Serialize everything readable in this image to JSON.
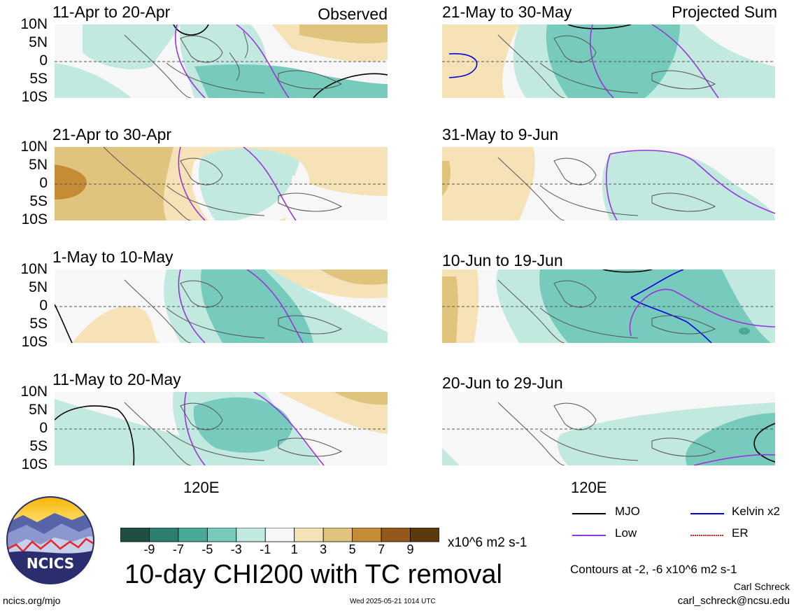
{
  "panels": [
    {
      "title": "11-Apr to 20-Apr",
      "tag": "Observed"
    },
    {
      "title": "21-Apr to 30-Apr",
      "tag": ""
    },
    {
      "title": "1-May to 10-May",
      "tag": ""
    },
    {
      "title": "11-May to 20-May",
      "tag": ""
    },
    {
      "title": "21-May to 30-May",
      "tag": "Projected Sum"
    },
    {
      "title": "31-May to 9-Jun",
      "tag": ""
    },
    {
      "title": "10-Jun to 19-Jun",
      "tag": ""
    },
    {
      "title": "20-Jun to 29-Jun",
      "tag": ""
    }
  ],
  "lat_labels": [
    "10N",
    "5N",
    "0",
    "5S",
    "10S"
  ],
  "lon_label": "120E",
  "colorbar": {
    "ticks": [
      "-9",
      "-7",
      "-5",
      "-3",
      "-1",
      "1",
      "3",
      "5",
      "7",
      "9"
    ],
    "units": "x10^6 m2 s-1",
    "colors": [
      "#1f4f43",
      "#2a7f6e",
      "#4aa897",
      "#77cbbd",
      "#c2e9e0",
      "#f7f7f7",
      "#f5e2b7",
      "#e0c37c",
      "#c58b35",
      "#95581b",
      "#5c3a0d"
    ]
  },
  "figure_title": "10-day CHI200 with TC removal",
  "legend": [
    {
      "label": "MJO",
      "color": "#000000"
    },
    {
      "label": "Kelvin x2",
      "color": "#0000dd"
    },
    {
      "label": "Low",
      "color": "#9933dd"
    },
    {
      "label": "ER",
      "color": "#dd2222"
    }
  ],
  "contour_note": "Contours at -2, -6 x10^6 m2 s-1",
  "author": "Carl Schreck",
  "email": "carl_schreck@ncsu.edu",
  "website": "ncics.org/mjo",
  "timestamp": "Wed 2025-05-21 1014 UTC",
  "logo_text": "NCICS"
}
